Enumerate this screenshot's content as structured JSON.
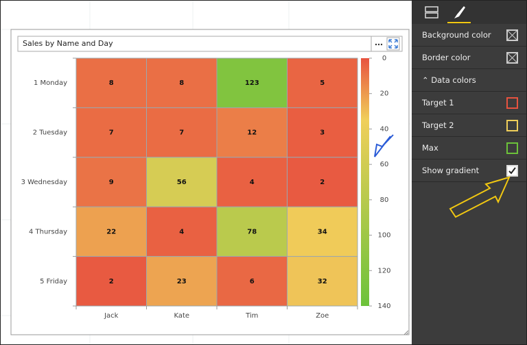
{
  "chart_data": {
    "type": "heatmap",
    "title": "Sales by Name and Day",
    "x_categories": [
      "Jack",
      "Kate",
      "Tim",
      "Zoe"
    ],
    "y_categories": [
      "1 Monday",
      "2 Tuesday",
      "3 Wednesday",
      "4 Thursday",
      "5 Friday"
    ],
    "values": [
      [
        8,
        8,
        123,
        5
      ],
      [
        7,
        7,
        12,
        3
      ],
      [
        9,
        56,
        4,
        2
      ],
      [
        22,
        4,
        78,
        34
      ],
      [
        2,
        23,
        6,
        32
      ]
    ],
    "colorbar_lim": [
      0,
      140
    ],
    "colorbar_ticks": [
      0,
      20,
      40,
      60,
      80,
      100,
      120,
      140
    ],
    "colors": [
      "#e8533f",
      "#f0cf5a",
      "#6cc23a"
    ]
  },
  "panel": {
    "background_color": "Background color",
    "border_color": "Border color",
    "data_colors": "Data colors",
    "target_1": "Target 1",
    "target_2": "Target 2",
    "max": "Max",
    "show_gradient": "Show gradient"
  }
}
